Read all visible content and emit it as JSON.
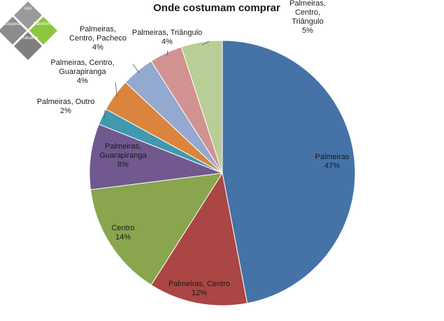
{
  "logo": {
    "words": [
      "Unir",
      "Cooperar",
      "Transformar",
      "Trabalhar"
    ]
  },
  "chart_data": {
    "type": "pie",
    "title": "Onde costumam comprar",
    "slices": [
      {
        "label": [
          "Palmeiras"
        ],
        "pct": "47%",
        "value": 47,
        "color": "#4572A7"
      },
      {
        "label": [
          "Palmeiras, Centro"
        ],
        "pct": "12%",
        "value": 12,
        "color": "#AA4643"
      },
      {
        "label": [
          "Centro"
        ],
        "pct": "14%",
        "value": 14,
        "color": "#89A54E"
      },
      {
        "label": [
          "Palmeiras,",
          "Guarapiranga"
        ],
        "pct": "8%",
        "value": 8,
        "color": "#71588F"
      },
      {
        "label": [
          "Palmeiras, Outro"
        ],
        "pct": "2%",
        "value": 2,
        "color": "#4198AF"
      },
      {
        "label": [
          "Palmeiras, Centro,",
          "Guarapiranga"
        ],
        "pct": "4%",
        "value": 4,
        "color": "#DB843D"
      },
      {
        "label": [
          "Palmeiras,",
          "Centro, Pacheco"
        ],
        "pct": "4%",
        "value": 4,
        "color": "#93A9CF"
      },
      {
        "label": [
          "Palmeiras, Triângulo"
        ],
        "pct": "4%",
        "value": 4,
        "color": "#D19392"
      },
      {
        "label": [
          "Palmeiras,",
          "Centro,",
          "Triângulo"
        ],
        "pct": "5%",
        "value": 5,
        "color": "#B9CD96"
      }
    ]
  }
}
